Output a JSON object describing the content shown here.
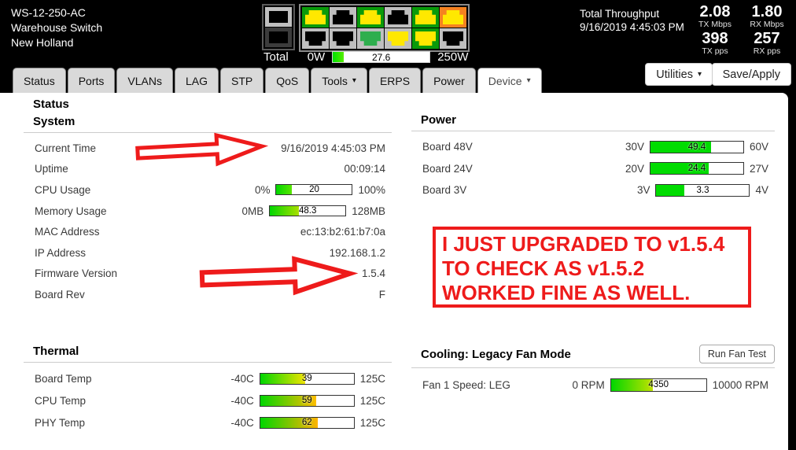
{
  "ui": {
    "caret": "▾"
  },
  "header": {
    "device": {
      "model": "WS-12-250-AC",
      "name": "Warehouse Switch",
      "location": "New Holland"
    },
    "throughput": {
      "title": "Total Throughput",
      "timestamp": "9/16/2019 4:45:03 PM",
      "stats": [
        {
          "value": "2.08",
          "label": "TX Mbps"
        },
        {
          "value": "1.80",
          "label": "RX Mbps"
        },
        {
          "value": "398",
          "label": "TX pps"
        },
        {
          "value": "257",
          "label": "RX pps"
        }
      ]
    },
    "power_total": {
      "label": "Total",
      "min": "0W",
      "max": "250W",
      "value": "27.6",
      "pct": 11,
      "stops": [
        "#00e000",
        "#55ee00"
      ]
    },
    "buttons": {
      "utilities": "Utilities",
      "save_apply": "Save/Apply"
    },
    "ports": {
      "sfp": [
        {
          "frame": "#bfbfbf",
          "jack": "#000000"
        },
        {
          "frame": "#3c3c3c",
          "jack": "#000000"
        }
      ],
      "top": [
        {
          "frame": "#0a9a0a",
          "jack": "#ffe800"
        },
        {
          "frame": "#bfbfbf",
          "jack": "#000000"
        },
        {
          "frame": "#0a9a0a",
          "jack": "#ffe800"
        },
        {
          "frame": "#bfbfbf",
          "jack": "#000000"
        },
        {
          "frame": "#0a9a0a",
          "jack": "#ffe800"
        },
        {
          "frame": "#f58220",
          "jack": "#ffe800"
        }
      ],
      "bottom": [
        {
          "frame": "#bfbfbf",
          "jack": "#000000"
        },
        {
          "frame": "#bfbfbf",
          "jack": "#000000"
        },
        {
          "frame": "#bfbfbf",
          "jack": "#2eae4e"
        },
        {
          "frame": "#bfbfbf",
          "jack": "#ffe800"
        },
        {
          "frame": "#0a9a0a",
          "jack": "#ffe800"
        },
        {
          "frame": "#bfbfbf",
          "jack": "#000000"
        }
      ]
    }
  },
  "tabs": [
    {
      "label": "Status"
    },
    {
      "label": "Ports"
    },
    {
      "label": "VLANs"
    },
    {
      "label": "LAG"
    },
    {
      "label": "STP"
    },
    {
      "label": "QoS"
    },
    {
      "label": "Tools",
      "dropdown": true
    },
    {
      "label": "ERPS"
    },
    {
      "label": "Power"
    },
    {
      "label": "Device",
      "dropdown": true,
      "active": true
    }
  ],
  "page": {
    "title": "Status",
    "system": {
      "title": "System",
      "rows": [
        {
          "label": "Current Time",
          "value": "9/16/2019 4:45:03 PM"
        },
        {
          "label": "Uptime",
          "value": "00:09:14"
        },
        {
          "label": "CPU Usage",
          "bar": {
            "min": "0%",
            "max": "100%",
            "value": "20",
            "pct": 20,
            "stops": [
              "#00d600",
              "#59e600"
            ]
          }
        },
        {
          "label": "Memory Usage",
          "bar": {
            "min": "0MB",
            "max": "128MB",
            "value": "48.3",
            "pct": 38,
            "stops": [
              "#00d600",
              "#aadf00"
            ]
          }
        },
        {
          "label": "MAC Address",
          "value": "ec:13:b2:61:b7:0a"
        },
        {
          "label": "IP Address",
          "value": "192.168.1.2"
        },
        {
          "label": "Firmware Version",
          "value": "1.5.4"
        },
        {
          "label": "Board Rev",
          "value": "F"
        }
      ]
    },
    "power": {
      "title": "Power",
      "rows": [
        {
          "label": "Board 48V",
          "bar": {
            "min": "30V",
            "max": "60V",
            "value": "49.4",
            "pct": 65,
            "stops": [
              "#00dc00",
              "#00dc00"
            ]
          }
        },
        {
          "label": "Board 24V",
          "bar": {
            "min": "20V",
            "max": "27V",
            "value": "24.4",
            "pct": 63,
            "stops": [
              "#00dc00",
              "#00dc00"
            ]
          }
        },
        {
          "label": "Board 3V",
          "bar": {
            "min": "3V",
            "max": "4V",
            "value": "3.3",
            "pct": 30,
            "stops": [
              "#00dc00",
              "#00dc00"
            ]
          }
        }
      ]
    },
    "thermal": {
      "title": "Thermal",
      "rows": [
        {
          "label": "Board Temp",
          "bar": {
            "min": "-40C",
            "max": "125C",
            "value": "39",
            "pct": 48,
            "stops": [
              "#00d600",
              "#f0e400"
            ]
          }
        },
        {
          "label": "CPU Temp",
          "bar": {
            "min": "-40C",
            "max": "125C",
            "value": "59",
            "pct": 60,
            "stops": [
              "#00d600",
              "#ffbe00"
            ]
          }
        },
        {
          "label": "PHY Temp",
          "bar": {
            "min": "-40C",
            "max": "125C",
            "value": "62",
            "pct": 62,
            "stops": [
              "#00d600",
              "#ffb400"
            ]
          }
        }
      ]
    },
    "cooling": {
      "title": "Cooling: Legacy Fan Mode",
      "button": "Run Fan Test",
      "rows": [
        {
          "label": "Fan 1 Speed: LEG",
          "bar": {
            "min": "0 RPM",
            "max": "10000 RPM",
            "value": "4350",
            "pct": 44,
            "stops": [
              "#00d600",
              "#c0e200"
            ]
          }
        }
      ]
    }
  },
  "annotations": {
    "color": "#ee1b1b",
    "note_lines": [
      "I JUST UPGRADED TO v1.5.4",
      "TO CHECK AS v1.5.2",
      "WORKED FINE AS WELL."
    ]
  }
}
